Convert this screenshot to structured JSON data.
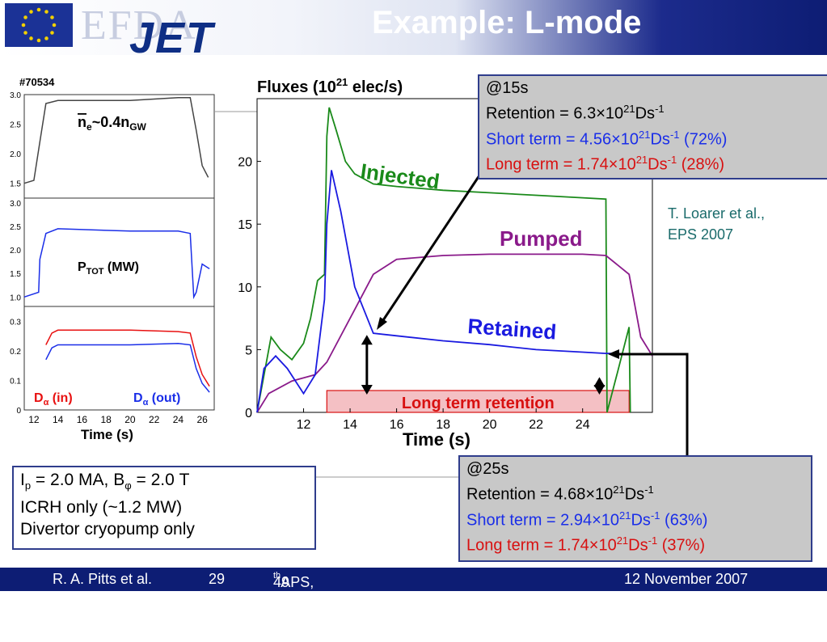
{
  "header": {
    "logo_efda": "EFDA",
    "logo_jet": "JET",
    "title": "Example: L-mode"
  },
  "shot": "#70534",
  "small_plots": {
    "xlabel": "Time (s)",
    "x_ticks": [
      "12",
      "14",
      "16",
      "18",
      "20",
      "22",
      "24",
      "26"
    ],
    "panel1": {
      "annotation_ne": "n",
      "annotation_ne_sub": "e",
      "annotation_rest": "~0.4n",
      "annotation_gw": "GW",
      "y_ticks": [
        "3.0",
        "2.5",
        "2.0",
        "1.5"
      ]
    },
    "panel2": {
      "annotation_p": "P",
      "annotation_sub": "TOT",
      "annotation_unit": " (MW)",
      "y_ticks": [
        "3.0",
        "2.5",
        "2.0",
        "1.5",
        "1.0"
      ]
    },
    "panel3": {
      "label_in_d": "D",
      "label_in_alpha": "α",
      "label_in_rest": " (in)",
      "label_out_d": "D",
      "label_out_alpha": "α",
      "label_out_rest": " (out)",
      "y_ticks": [
        "0.3",
        "0.2",
        "0.1",
        "0"
      ]
    }
  },
  "main_plot": {
    "title_a": "Fluxes (10",
    "title_sup": "21",
    "title_b": " elec/s)",
    "xlabel": "Time (s)",
    "x_ticks": [
      "12",
      "14",
      "16",
      "18",
      "20",
      "22",
      "24"
    ],
    "y_ticks": [
      "0",
      "5",
      "10",
      "15",
      "20"
    ],
    "label_injected": "Injected",
    "label_pumped": "Pumped",
    "label_retained": "Retained",
    "label_long_term": "Long term retention"
  },
  "box_15s": {
    "title": "@15s",
    "retention_a": "Retention = 6.3×10",
    "retention_sup": "21",
    "retention_b": "Ds",
    "retention_sup2": "-1",
    "short_a": "Short term = 4.56×10",
    "short_sup": "21",
    "short_b": "Ds",
    "short_sup2": "-1",
    "short_c": " (72%)",
    "long_a": "Long term = 1.74×10",
    "long_sup": "21",
    "long_b": "Ds",
    "long_sup2": "-1",
    "long_c": " (28%)"
  },
  "box_25s": {
    "title": "@25s",
    "retention_a": "Retention = 4.68×10",
    "retention_sup": "21",
    "retention_b": "Ds",
    "retention_sup2": "-1",
    "short_a": "Short term = 2.94×10",
    "short_sup": "21",
    "short_b": "Ds",
    "short_sup2": "-1",
    "short_c": " (63%)",
    "long_a": "Long term = 1.74×10",
    "long_sup": "21",
    "long_b": "Ds",
    "long_sup2": "-1",
    "long_c": " (37%)"
  },
  "params_box": {
    "line1_i": "I",
    "line1_p": "p",
    "line1_a": " = 2.0 MA, B",
    "line1_phi": "φ",
    "line1_b": " = 2.0 T",
    "line2": "ICRH only (~1.2 MW)",
    "line3": "Divertor cryopump only"
  },
  "reference": {
    "line1": "T. Loarer et al.,",
    "line2": "EPS 2007"
  },
  "footer": {
    "author": "R. A. Pitts et al.",
    "page": "29",
    "conf_a": "49",
    "conf_sup": "th",
    "conf_b": " APS, Orlando, Florida, USA",
    "date": "12 November 2007"
  },
  "colors": {
    "injected": "#1a8a1a",
    "pumped": "#8a1a8a",
    "retained": "#1a1ae0",
    "long_term_fill": "#f4c0c4",
    "long_term_edge": "#d81010",
    "density": "#444444",
    "power": "#1a2ee8",
    "d_alpha_in": "#e81010",
    "d_alpha_out": "#1a2ee8",
    "footer_bg": "#0d1d74"
  },
  "chart_data": [
    {
      "type": "line",
      "title": "Fluxes (10^21 elec/s)",
      "xlabel": "Time (s)",
      "ylabel": "",
      "xlim": [
        10.0,
        27.0
      ],
      "ylim": [
        0,
        25
      ],
      "grid": false,
      "series": [
        {
          "name": "Injected",
          "x": [
            10.0,
            10.6,
            11.0,
            11.5,
            12.0,
            12.3,
            12.6,
            12.9,
            13.0,
            13.1,
            13.4,
            13.8,
            14.2,
            15.0,
            16.0,
            18.0,
            20.0,
            22.0,
            24.0,
            25.0,
            25.05,
            25.5,
            26.0,
            26.05
          ],
          "values": [
            0,
            6,
            5,
            4.2,
            5.5,
            7.5,
            10.5,
            11,
            22,
            24.3,
            22.5,
            20,
            19,
            18.2,
            18,
            17.7,
            17.5,
            17.3,
            17.1,
            17.0,
            0,
            3.2,
            6.8,
            0
          ]
        },
        {
          "name": "Pumped",
          "x": [
            10.0,
            10.5,
            11.5,
            12.5,
            13.0,
            14.0,
            15.0,
            16.0,
            18.0,
            20.0,
            22.0,
            24.0,
            25.0,
            26.0,
            26.5,
            27.0
          ],
          "values": [
            0,
            1.5,
            2.5,
            3.0,
            4.0,
            7.5,
            11.0,
            12.2,
            12.5,
            12.6,
            12.6,
            12.6,
            12.5,
            11.0,
            6.0,
            4.5
          ]
        },
        {
          "name": "Retained",
          "x": [
            10.0,
            10.3,
            10.8,
            11.3,
            12.0,
            12.5,
            12.9,
            13.0,
            13.2,
            13.6,
            14.2,
            15.0,
            16.0,
            18.0,
            20.0,
            22.0,
            24.0,
            25.0,
            25.3
          ],
          "values": [
            0,
            3.5,
            4.5,
            3.5,
            1.5,
            3.0,
            9.0,
            15.0,
            19.3,
            16.0,
            10.0,
            6.3,
            6.1,
            5.7,
            5.4,
            5.0,
            4.8,
            4.7,
            4.7
          ]
        }
      ],
      "annotations": {
        "long_term_retention_band": {
          "x": [
            13.0,
            26.0
          ],
          "y": [
            0,
            1.74
          ]
        }
      }
    },
    {
      "type": "line",
      "xlabel": "",
      "ylabel": "",
      "xlim": [
        11.2,
        27.0
      ],
      "ylim": [
        1.25,
        3.0
      ],
      "series": [
        {
          "name": "",
          "x": [
            11.2,
            12.0,
            12.5,
            13.0,
            14.0,
            20.0,
            24.0,
            25.0,
            25.5,
            26.0,
            26.5
          ],
          "values": [
            1.5,
            1.55,
            2.2,
            2.85,
            2.9,
            2.9,
            2.95,
            2.95,
            2.4,
            1.8,
            1.6
          ]
        }
      ]
    },
    {
      "type": "line",
      "xlabel": "",
      "ylabel": "",
      "xlim": [
        11.2,
        27.0
      ],
      "ylim": [
        0.8,
        3.1
      ],
      "series": [
        {
          "name": "",
          "x": [
            11.2,
            12.4,
            12.5,
            13.0,
            14.0,
            20.0,
            24.0,
            25.0,
            25.3,
            25.5,
            26.0,
            26.6
          ],
          "values": [
            1.0,
            1.1,
            1.8,
            2.35,
            2.45,
            2.4,
            2.4,
            2.35,
            1.0,
            1.1,
            1.7,
            1.6
          ]
        }
      ]
    },
    {
      "type": "line",
      "xlabel": "Time (s)",
      "ylabel": "",
      "xlim": [
        11.2,
        27.0
      ],
      "ylim": [
        0,
        0.35
      ],
      "series": [
        {
          "name": "Dα (in)",
          "x": [
            13.0,
            13.5,
            14.0,
            16.0,
            20.0,
            24.0,
            25.0,
            25.5,
            26.0,
            26.6
          ],
          "values": [
            0.22,
            0.26,
            0.27,
            0.27,
            0.27,
            0.265,
            0.26,
            0.18,
            0.12,
            0.08
          ]
        },
        {
          "name": "Dα (out)",
          "x": [
            13.0,
            13.5,
            14.0,
            16.0,
            20.0,
            24.0,
            25.0,
            25.5,
            26.0,
            26.6
          ],
          "values": [
            0.17,
            0.21,
            0.22,
            0.22,
            0.22,
            0.225,
            0.22,
            0.14,
            0.09,
            0.06
          ]
        }
      ]
    }
  ]
}
